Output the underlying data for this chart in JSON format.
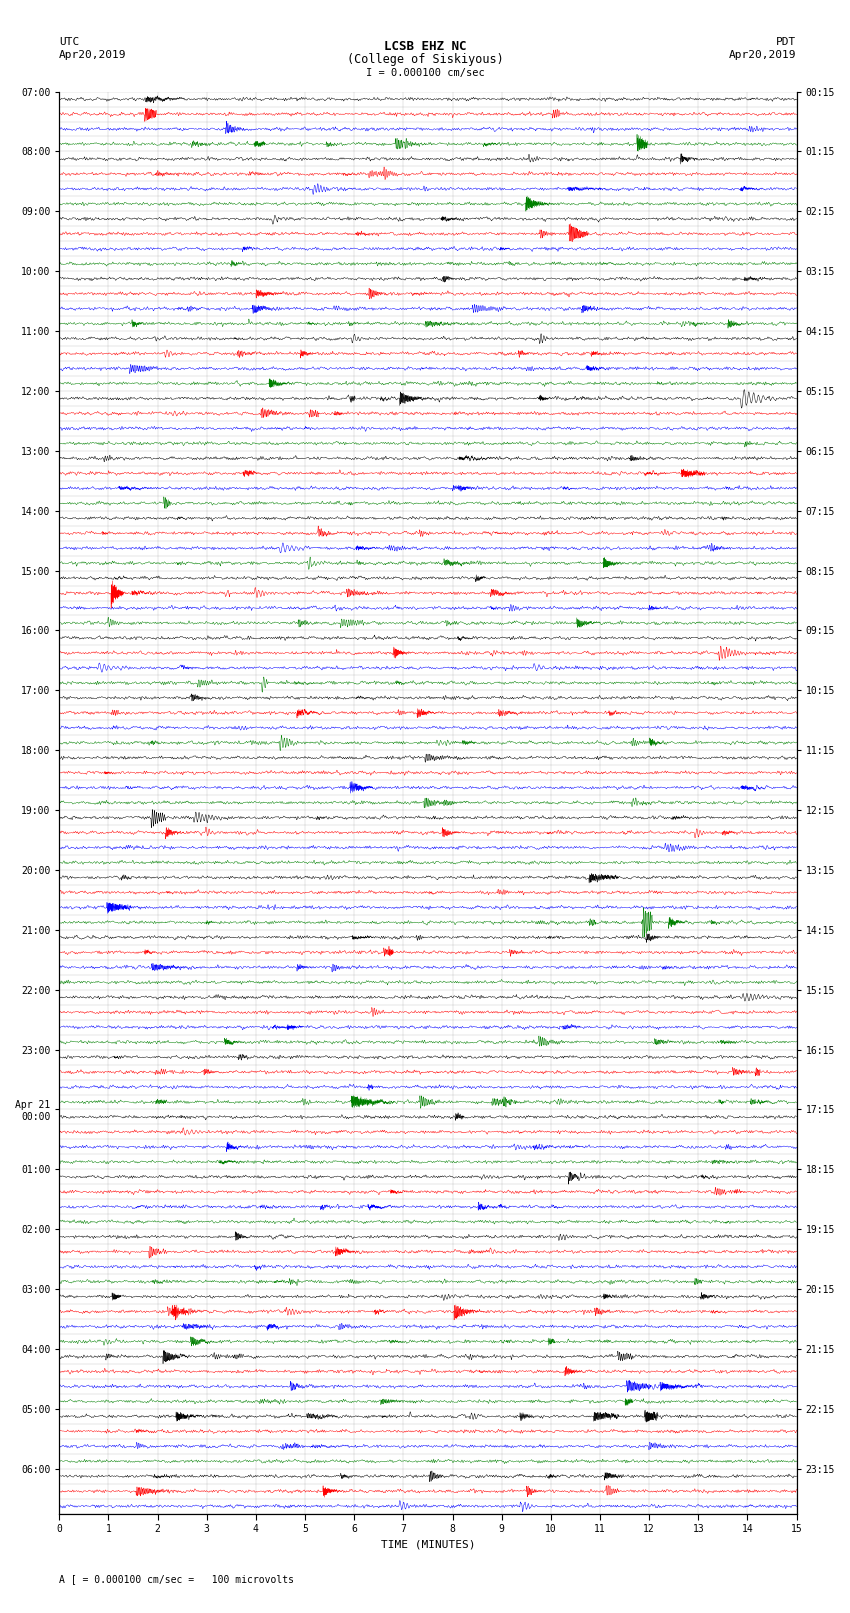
{
  "title_line1": "LCSB EHZ NC",
  "title_line2": "(College of Siskiyous)",
  "scale_label": "I = 0.000100 cm/sec",
  "footer_label": "A [ = 0.000100 cm/sec =   100 microvolts",
  "left_header": "UTC",
  "left_date": "Apr20,2019",
  "right_header": "PDT",
  "right_date": "Apr20,2019",
  "xlabel": "TIME (MINUTES)",
  "colors": [
    "black",
    "red",
    "blue",
    "green"
  ],
  "utc_labels": [
    "07:00",
    "08:00",
    "09:00",
    "10:00",
    "11:00",
    "12:00",
    "13:00",
    "14:00",
    "15:00",
    "16:00",
    "17:00",
    "18:00",
    "19:00",
    "20:00",
    "21:00",
    "22:00",
    "23:00",
    "Apr 21\n00:00",
    "01:00",
    "02:00",
    "03:00",
    "04:00",
    "05:00",
    "06:00"
  ],
  "utc_row_indices": [
    0,
    4,
    8,
    12,
    16,
    20,
    24,
    28,
    32,
    36,
    40,
    44,
    48,
    52,
    56,
    60,
    64,
    68,
    72,
    76,
    80,
    84,
    88,
    92
  ],
  "pdt_labels": [
    "00:15",
    "01:15",
    "02:15",
    "03:15",
    "04:15",
    "05:15",
    "06:15",
    "07:15",
    "08:15",
    "09:15",
    "10:15",
    "11:15",
    "12:15",
    "13:15",
    "14:15",
    "15:15",
    "16:15",
    "17:15",
    "18:15",
    "19:15",
    "20:15",
    "21:15",
    "22:15",
    "23:15"
  ],
  "pdt_row_indices": [
    0,
    4,
    8,
    12,
    16,
    20,
    24,
    28,
    32,
    36,
    40,
    44,
    48,
    52,
    56,
    60,
    64,
    68,
    72,
    76,
    80,
    84,
    88,
    92
  ],
  "num_rows": 95,
  "minutes": 15,
  "amplitude": 0.38,
  "background_color": "white",
  "trace_lw": 0.35,
  "seed": 42
}
